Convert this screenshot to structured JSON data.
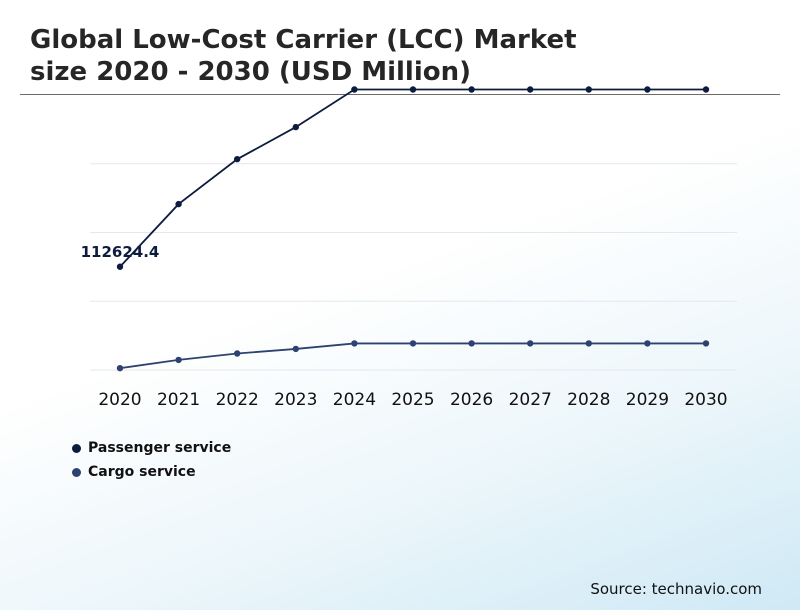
{
  "title_line1": "Global Low-Cost Carrier (LCC) Market",
  "title_line2": "size 2020 - 2030 (USD Million)",
  "source": "Source: technavio.com",
  "chart_data": {
    "type": "line",
    "categories": [
      "2020",
      "2021",
      "2022",
      "2023",
      "2024",
      "2025",
      "2026",
      "2027",
      "2028",
      "2029",
      "2030"
    ],
    "ylim": [
      0,
      300000
    ],
    "grid": true,
    "legend_placement": "bottom-left",
    "annotations": [
      {
        "series": 0,
        "index": 0,
        "label": "112624.4"
      }
    ],
    "series": [
      {
        "name": "Passenger service",
        "color": "#0d1b3e",
        "values": [
          112624.4,
          181000,
          230000,
          265000,
          306000,
          306000,
          306000,
          306000,
          306000,
          306000,
          306000
        ]
      },
      {
        "name": "Cargo service",
        "color": "#2d4270",
        "values": [
          2000,
          11000,
          18000,
          23000,
          29000,
          29000,
          29000,
          29000,
          29000,
          29000,
          29000
        ]
      }
    ]
  }
}
